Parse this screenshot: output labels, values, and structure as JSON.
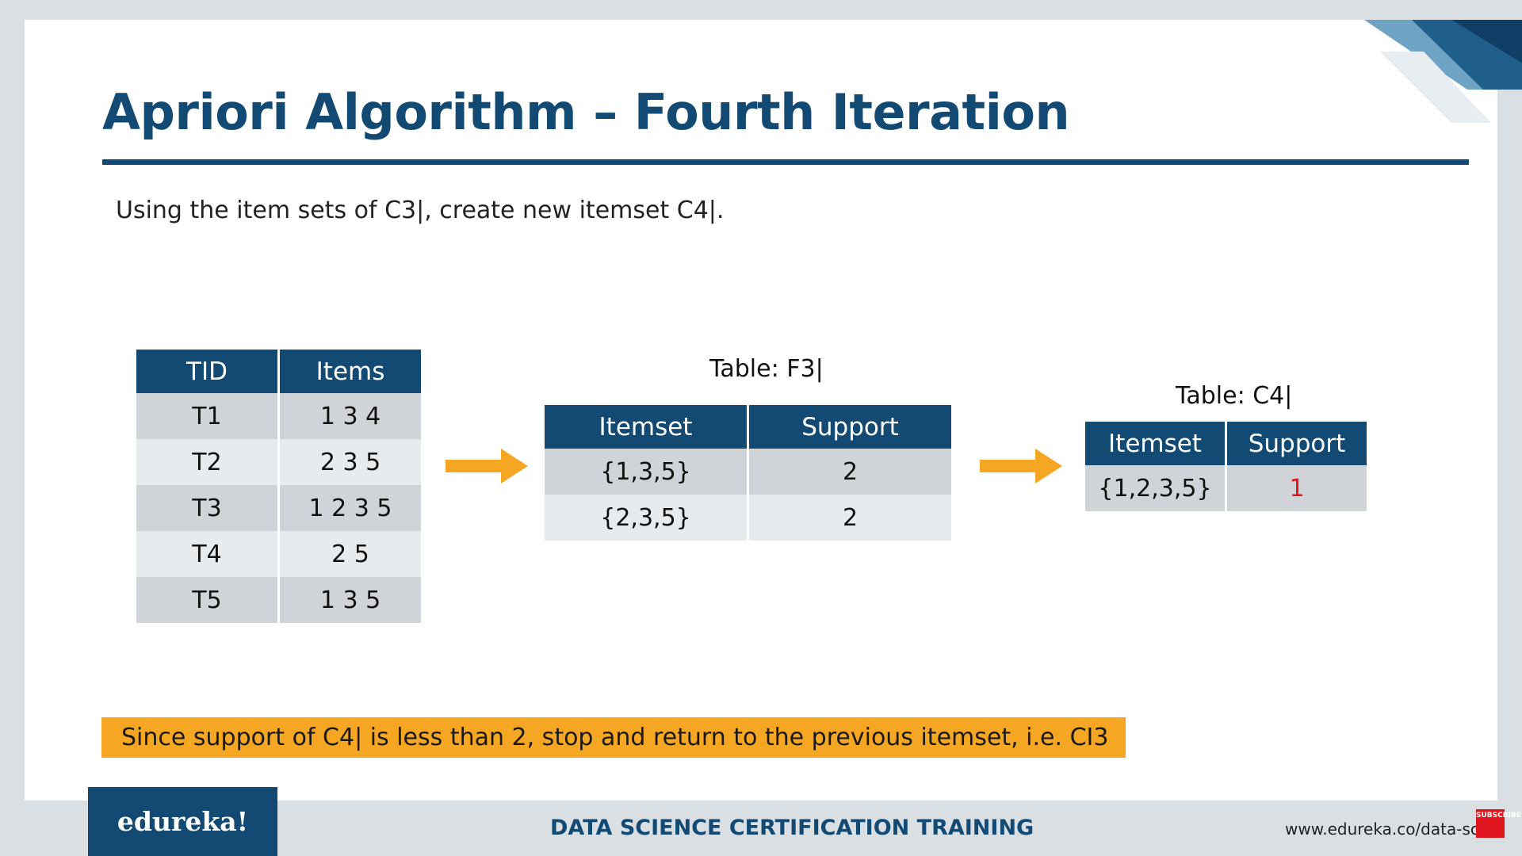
{
  "slide": {
    "title": "Apriori Algorithm – Fourth Iteration",
    "subtitle": "Using the item sets of C3|, create new itemset C4|."
  },
  "transactions_table": {
    "headers": [
      "TID",
      "Items"
    ],
    "rows": [
      [
        "T1",
        "1 3 4"
      ],
      [
        "T2",
        "2 3 5"
      ],
      [
        "T3",
        "1 2 3 5"
      ],
      [
        "T4",
        "2 5"
      ],
      [
        "T5",
        "1 3 5"
      ]
    ]
  },
  "f3_table": {
    "caption": "Table: F3|",
    "headers": [
      "Itemset",
      "Support"
    ],
    "rows": [
      [
        "{1,3,5}",
        "2"
      ],
      [
        "{2,3,5}",
        "2"
      ]
    ]
  },
  "c4_table": {
    "caption": "Table: C4|",
    "headers": [
      "Itemset",
      "Support"
    ],
    "rows": [
      [
        "{1,2,3,5}",
        "1"
      ]
    ]
  },
  "note": "Since support of C4| is less than 2, stop and return to the previous itemset, i.e. CI3",
  "footer": {
    "logo": "edureka!",
    "title": "DATA SCIENCE CERTIFICATION TRAINING",
    "url": "www.edureka.co/data-scien",
    "badge": "SUBSCRIBE"
  },
  "colors": {
    "brand_blue": "#124a73",
    "arrow_orange": "#f5a623",
    "highlight_red": "#e0141d"
  },
  "icons": [
    "right-arrow-icon",
    "subscribe-icon"
  ]
}
